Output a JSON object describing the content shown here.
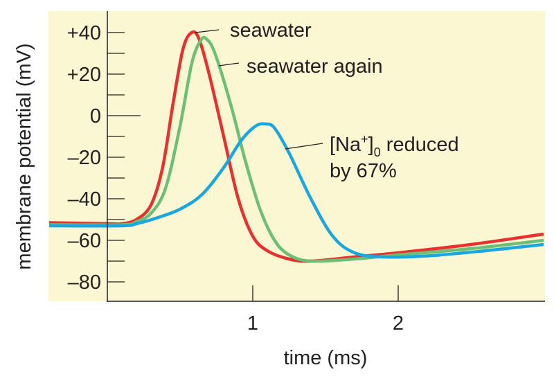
{
  "chart_data": {
    "type": "line",
    "title": "",
    "xlabel": "time (ms)",
    "ylabel": "membrane potential (mV)",
    "xlim": [
      -0.4,
      3.0
    ],
    "ylim": [
      -89,
      50
    ],
    "x_ticks": [
      {
        "value": 1,
        "label": "1"
      },
      {
        "value": 2,
        "label": "2"
      }
    ],
    "y_ticks": [
      {
        "value": 40,
        "label": "+40"
      },
      {
        "value": 30,
        "label": ""
      },
      {
        "value": 20,
        "label": "+20"
      },
      {
        "value": 10,
        "label": ""
      },
      {
        "value": 0,
        "label": "0"
      },
      {
        "value": -10,
        "label": ""
      },
      {
        "value": -20,
        "label": "–20"
      },
      {
        "value": -30,
        "label": ""
      },
      {
        "value": -40,
        "label": "–40"
      },
      {
        "value": -50,
        "label": ""
      },
      {
        "value": -60,
        "label": "–60"
      },
      {
        "value": -70,
        "label": ""
      },
      {
        "value": -80,
        "label": "–80"
      }
    ],
    "grid": false,
    "background": "#faf7d2",
    "series": [
      {
        "name": "seawater",
        "color": "#e8302f",
        "points": [
          [
            -0.4,
            -51.5
          ],
          [
            0,
            -52
          ],
          [
            0.1,
            -52
          ],
          [
            0.2,
            -50
          ],
          [
            0.3,
            -43
          ],
          [
            0.38,
            -25
          ],
          [
            0.45,
            5
          ],
          [
            0.52,
            32
          ],
          [
            0.58,
            40
          ],
          [
            0.63,
            37
          ],
          [
            0.7,
            20
          ],
          [
            0.8,
            -10
          ],
          [
            0.9,
            -40
          ],
          [
            1.0,
            -58
          ],
          [
            1.1,
            -65
          ],
          [
            1.25,
            -69
          ],
          [
            1.4,
            -70
          ],
          [
            1.7,
            -68
          ],
          [
            2.0,
            -66
          ],
          [
            2.5,
            -62
          ],
          [
            3.0,
            -57
          ]
        ]
      },
      {
        "name": "seawater again",
        "color": "#6dbf75",
        "points": [
          [
            -0.4,
            -52.5
          ],
          [
            0.1,
            -52.5
          ],
          [
            0.2,
            -51
          ],
          [
            0.3,
            -47
          ],
          [
            0.4,
            -35
          ],
          [
            0.5,
            -5
          ],
          [
            0.58,
            25
          ],
          [
            0.64,
            36
          ],
          [
            0.68,
            37
          ],
          [
            0.74,
            30
          ],
          [
            0.85,
            5
          ],
          [
            0.95,
            -22
          ],
          [
            1.05,
            -45
          ],
          [
            1.15,
            -60
          ],
          [
            1.25,
            -67
          ],
          [
            1.4,
            -70
          ],
          [
            1.7,
            -69
          ],
          [
            2.0,
            -67
          ],
          [
            2.5,
            -64
          ],
          [
            3.0,
            -60
          ]
        ]
      },
      {
        "name": "[Na+]0 reduced by 67%",
        "color": "#1aa7e0",
        "points": [
          [
            -0.4,
            -53
          ],
          [
            0.1,
            -53
          ],
          [
            0.2,
            -52
          ],
          [
            0.35,
            -49
          ],
          [
            0.5,
            -45
          ],
          [
            0.65,
            -38
          ],
          [
            0.8,
            -25
          ],
          [
            0.92,
            -12
          ],
          [
            1.02,
            -5
          ],
          [
            1.09,
            -4
          ],
          [
            1.15,
            -6
          ],
          [
            1.25,
            -18
          ],
          [
            1.4,
            -40
          ],
          [
            1.55,
            -58
          ],
          [
            1.7,
            -66
          ],
          [
            1.9,
            -68
          ],
          [
            2.2,
            -67.5
          ],
          [
            2.6,
            -65
          ],
          [
            3.0,
            -62
          ]
        ]
      }
    ],
    "annotations": {
      "seawater": "seawater",
      "seawater_again": "seawater again",
      "na_line1_prefix": "[Na",
      "na_sup": "+",
      "na_bracket": "]",
      "na_sub": "0",
      "na_line1_suffix": " reduced",
      "na_line2": "by 67%"
    }
  }
}
